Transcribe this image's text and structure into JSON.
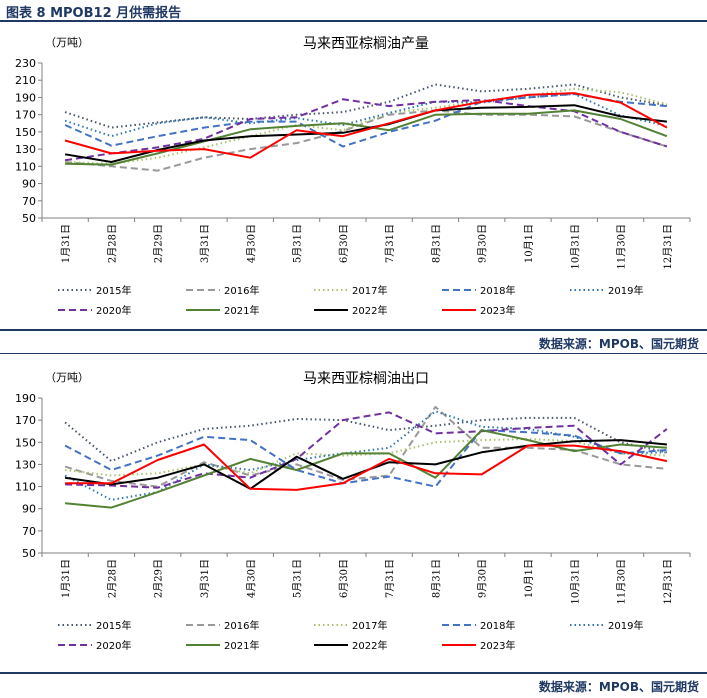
{
  "header": {
    "title": "图表 8 MPOB12 月供需报告"
  },
  "source_text": "数据来源：MPOB、国元期货",
  "series_styles": [
    {
      "name": "2015年",
      "color": "#44546a",
      "dash": "1.5,3"
    },
    {
      "name": "2016年",
      "color": "#999999",
      "dash": "7,4"
    },
    {
      "name": "2017年",
      "color": "#a9c26b",
      "dash": "1.5,3"
    },
    {
      "name": "2018年",
      "color": "#4472c4",
      "dash": "7,4"
    },
    {
      "name": "2019年",
      "color": "#2e75b6",
      "dash": "1.5,3"
    },
    {
      "name": "2020年",
      "color": "#7030a0",
      "dash": "7,4"
    },
    {
      "name": "2021年",
      "color": "#548235",
      "dash": ""
    },
    {
      "name": "2022年",
      "color": "#000000",
      "dash": ""
    },
    {
      "name": "2023年",
      "color": "#ff0000",
      "dash": ""
    }
  ],
  "chart_data": [
    {
      "type": "line",
      "title": "马来西亚棕榈油产量",
      "unit": "（万吨）",
      "ylim": [
        50,
        230
      ],
      "yticks": [
        50,
        70,
        90,
        110,
        130,
        150,
        170,
        190,
        210,
        230
      ],
      "categories": [
        "1月31日",
        "2月28日",
        "2月29日",
        "3月31日",
        "4月30日",
        "5月31日",
        "6月30日",
        "7月31日",
        "8月31日",
        "9月30日",
        "10月1日",
        "10月31日",
        "11月30日",
        "12月31日"
      ],
      "legend_position": "bottom",
      "series": [
        {
          "name": "2015年",
          "values": [
            173,
            155,
            161,
            167,
            165,
            170,
            173,
            185,
            205,
            197,
            200,
            205,
            190,
            181
          ]
        },
        {
          "name": "2016年",
          "values": [
            115,
            110,
            105,
            120,
            130,
            137,
            151,
            170,
            175,
            170,
            170,
            168,
            150,
            133
          ]
        },
        {
          "name": "2017年",
          "values": [
            115,
            113,
            120,
            132,
            145,
            158,
            152,
            172,
            178,
            186,
            192,
            200,
            196,
            182
          ]
        },
        {
          "name": "2018年",
          "values": [
            158,
            134,
            145,
            155,
            162,
            162,
            133,
            150,
            163,
            185,
            190,
            194,
            185,
            180
          ]
        },
        {
          "name": "2019年",
          "values": [
            163,
            145,
            160,
            167,
            160,
            166,
            158,
            172,
            185,
            184,
            190,
            194,
            169,
            157
          ]
        },
        {
          "name": "2020年",
          "values": [
            117,
            125,
            132,
            142,
            165,
            167,
            188,
            180,
            185,
            187,
            180,
            174,
            150,
            133
          ]
        },
        {
          "name": "2021年",
          "values": [
            113,
            112,
            125,
            139,
            153,
            157,
            160,
            152,
            170,
            171,
            171,
            175,
            165,
            145
          ]
        },
        {
          "name": "2022年",
          "values": [
            124,
            115,
            129,
            140,
            145,
            147,
            149,
            159,
            175,
            178,
            179,
            181,
            168,
            162
          ]
        },
        {
          "name": "2023年",
          "values": [
            140,
            125,
            128,
            130,
            120,
            152,
            145,
            160,
            175,
            185,
            193,
            195,
            184,
            155
          ]
        }
      ]
    },
    {
      "type": "line",
      "title": "马来西亚棕榈油出口",
      "unit": "（万吨）",
      "ylim": [
        50,
        190
      ],
      "yticks": [
        50,
        70,
        90,
        110,
        130,
        150,
        170,
        190
      ],
      "categories": [
        "1月31日",
        "2月28日",
        "2月29日",
        "3月31日",
        "4月30日",
        "5月31日",
        "6月30日",
        "7月31日",
        "8月31日",
        "9月30日",
        "10月1日",
        "10月31日",
        "11月30日",
        "12月31日"
      ],
      "legend_position": "bottom",
      "series": [
        {
          "name": "2015年",
          "values": [
            168,
            133,
            150,
            162,
            165,
            171,
            170,
            161,
            165,
            170,
            172,
            172,
            150,
            141
          ]
        },
        {
          "name": "2016年",
          "values": [
            128,
            115,
            110,
            132,
            120,
            130,
            116,
            120,
            182,
            145,
            145,
            143,
            130,
            126
          ]
        },
        {
          "name": "2017年",
          "values": [
            125,
            120,
            122,
            130,
            122,
            140,
            138,
            140,
            150,
            152,
            153,
            151,
            140,
            138
          ]
        },
        {
          "name": "2018年",
          "values": [
            147,
            125,
            138,
            155,
            152,
            125,
            113,
            119,
            110,
            161,
            159,
            156,
            140,
            143
          ]
        },
        {
          "name": "2019年",
          "values": [
            120,
            98,
            105,
            130,
            125,
            134,
            140,
            145,
            178,
            164,
            162,
            155,
            140,
            141
          ]
        },
        {
          "name": "2020年",
          "values": [
            112,
            111,
            109,
            122,
            118,
            135,
            170,
            177,
            158,
            160,
            163,
            165,
            130,
            162
          ]
        },
        {
          "name": "2021年",
          "values": [
            95,
            91,
            105,
            120,
            135,
            125,
            140,
            140,
            118,
            161,
            152,
            142,
            148,
            145
          ]
        },
        {
          "name": "2022年",
          "values": [
            118,
            112,
            118,
            130,
            108,
            137,
            117,
            132,
            130,
            141,
            147,
            151,
            152,
            148
          ]
        },
        {
          "name": "2023年",
          "values": [
            113,
            113,
            134,
            148,
            108,
            107,
            113,
            135,
            122,
            121,
            147,
            147,
            142,
            133
          ]
        }
      ]
    }
  ]
}
